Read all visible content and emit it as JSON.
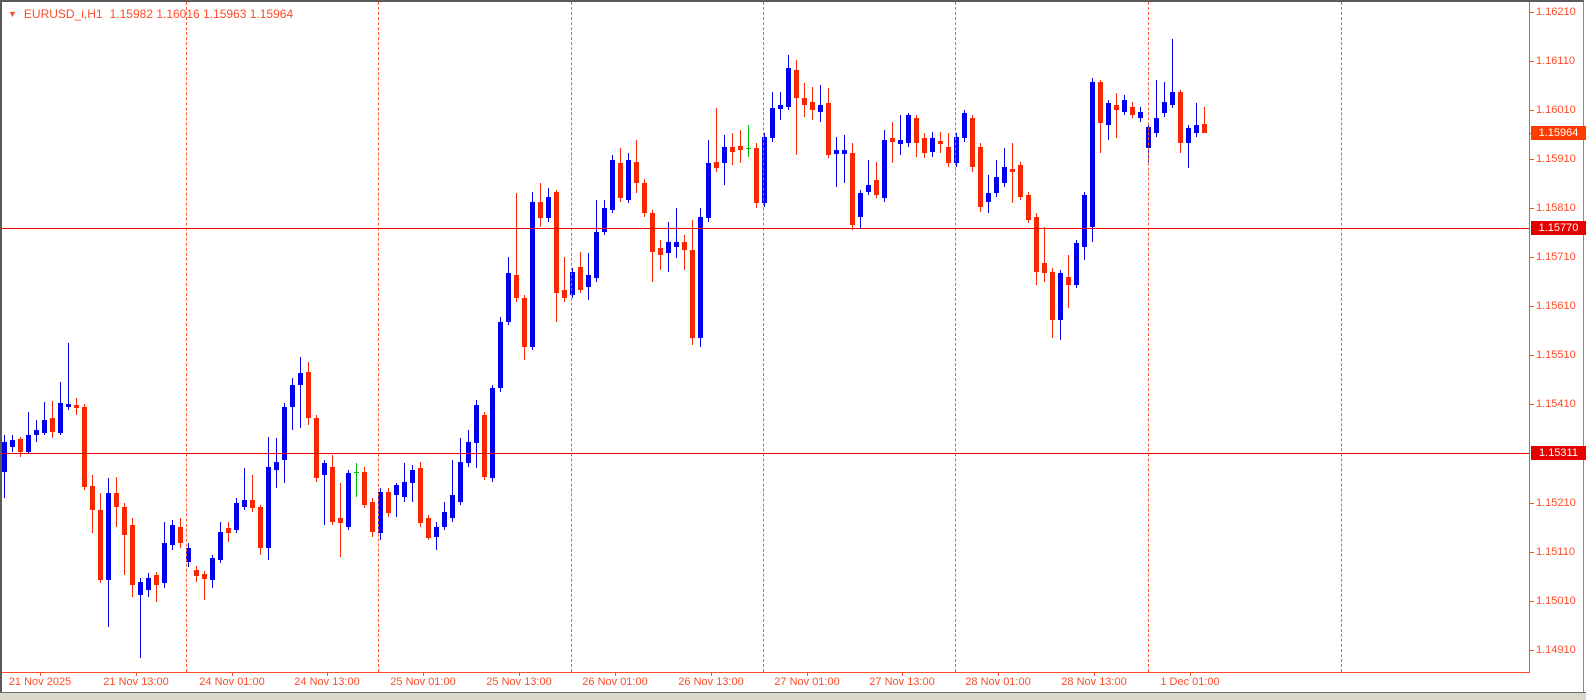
{
  "header": {
    "symbol": "EURUSD_i,H1",
    "ohlc": "1.15982 1.16016 1.15963 1.15964"
  },
  "colors": {
    "background": "#ffffff",
    "text": "#ff4b28",
    "axis_border": "#ff4b28",
    "separator": "#ff5c33",
    "bull_candle": "#0000ee",
    "bear_candle": "#f52800",
    "doji_candle": "#00be00",
    "hline": "#ee0000",
    "hline_box_bg": "#e60000",
    "price_marker_bg": "#ff3c00",
    "chrome_strip": "#dcd8cc"
  },
  "chart_data": {
    "type": "candlestick",
    "title": "EURUSD_i,H1",
    "symbol": "EURUSD_i",
    "timeframe": "H1",
    "ylim": [
      1.14865,
      1.1623
    ],
    "grid": "vertical-day-separators-only",
    "legend_position": "none",
    "y_axis_labels": [
      "1.16210",
      "1.16110",
      "1.16010",
      "1.15910",
      "1.15810",
      "1.15710",
      "1.15610",
      "1.15510",
      "1.15410",
      "1.15210",
      "1.15110",
      "1.15010",
      "1.14910"
    ],
    "x_axis_labels": [
      {
        "x": 40,
        "label": "21 Nov 2025"
      },
      {
        "x": 136,
        "label": "21 Nov 13:00"
      },
      {
        "x": 232,
        "label": "24 Nov 01:00"
      },
      {
        "x": 327,
        "label": "24 Nov 13:00"
      },
      {
        "x": 423,
        "label": "25 Nov 01:00"
      },
      {
        "x": 519,
        "label": "25 Nov 13:00"
      },
      {
        "x": 615,
        "label": "26 Nov 01:00"
      },
      {
        "x": 711,
        "label": "26 Nov 13:00"
      },
      {
        "x": 807,
        "label": "27 Nov 01:00"
      },
      {
        "x": 902,
        "label": "27 Nov 13:00"
      },
      {
        "x": 998,
        "label": "28 Nov 01:00"
      },
      {
        "x": 1094,
        "label": "28 Nov 13:00"
      },
      {
        "x": 1190,
        "label": "1 Dec 01:00"
      }
    ],
    "day_separators_x": [
      186,
      378,
      571,
      763,
      955,
      1148,
      1341
    ],
    "hlines": [
      {
        "price": 1.1577,
        "label": "1.15770"
      },
      {
        "price": 1.15311,
        "label": "1.15311"
      }
    ],
    "price_marker": {
      "price": 1.15964,
      "label": "1.15964"
    },
    "x_start": 4.5,
    "x_step": 8,
    "candles": [
      [
        1.15273,
        1.15348,
        1.1522,
        1.15334,
        "u"
      ],
      [
        1.15323,
        1.15348,
        1.15313,
        1.15338,
        "u"
      ],
      [
        1.1534,
        1.15344,
        1.15303,
        1.15313,
        "d"
      ],
      [
        1.15313,
        1.15395,
        1.15311,
        1.15348,
        "u"
      ],
      [
        1.15348,
        1.15379,
        1.15334,
        1.15358,
        "u"
      ],
      [
        1.15352,
        1.15415,
        1.15348,
        1.15379,
        "u"
      ],
      [
        1.15383,
        1.15417,
        1.15342,
        1.15354,
        "d"
      ],
      [
        1.15352,
        1.15456,
        1.15348,
        1.15413,
        "u"
      ],
      [
        1.15405,
        1.15535,
        1.15399,
        1.15411,
        "u"
      ],
      [
        1.15409,
        1.15423,
        1.15389,
        1.15403,
        "d"
      ],
      [
        1.15405,
        1.15411,
        1.15236,
        1.15242,
        "d"
      ],
      [
        1.15244,
        1.15266,
        1.15148,
        1.15195,
        "d"
      ],
      [
        1.15195,
        1.1523,
        1.15046,
        1.15053,
        "d"
      ],
      [
        1.15053,
        1.1526,
        1.14957,
        1.1523,
        "u"
      ],
      [
        1.1523,
        1.15262,
        1.15161,
        1.15201,
        "d"
      ],
      [
        1.15201,
        1.15209,
        1.15063,
        1.15144,
        "d"
      ],
      [
        1.15165,
        1.15179,
        1.15018,
        1.15042,
        "d"
      ],
      [
        1.15022,
        1.15057,
        1.14894,
        1.15048,
        "u"
      ],
      [
        1.15032,
        1.15067,
        1.15018,
        1.15057,
        "u"
      ],
      [
        1.15063,
        1.15069,
        1.15008,
        1.15042,
        "d"
      ],
      [
        1.15046,
        1.15171,
        1.15036,
        1.15128,
        "u"
      ],
      [
        1.15124,
        1.15175,
        1.15114,
        1.15165,
        "u"
      ],
      [
        1.15161,
        1.15179,
        1.15118,
        1.15128,
        "d"
      ],
      [
        1.15089,
        1.15128,
        1.15079,
        1.15118,
        "u"
      ],
      [
        1.15073,
        1.15081,
        1.15048,
        1.15061,
        "d"
      ],
      [
        1.15065,
        1.15071,
        1.15012,
        1.15054,
        "d"
      ],
      [
        1.15053,
        1.15103,
        1.15036,
        1.15097,
        "u"
      ],
      [
        1.15093,
        1.15171,
        1.15087,
        1.1515,
        "u"
      ],
      [
        1.15159,
        1.15171,
        1.1513,
        1.15148,
        "d"
      ],
      [
        1.15154,
        1.1522,
        1.15148,
        1.15209,
        "u"
      ],
      [
        1.15201,
        1.15281,
        1.15195,
        1.15216,
        "u"
      ],
      [
        1.15216,
        1.15266,
        1.15191,
        1.15199,
        "d"
      ],
      [
        1.15201,
        1.15205,
        1.15103,
        1.15118,
        "d"
      ],
      [
        1.15118,
        1.15344,
        1.15093,
        1.15283,
        "u"
      ],
      [
        1.15277,
        1.15342,
        1.1524,
        1.15293,
        "u"
      ],
      [
        1.15297,
        1.15413,
        1.1525,
        1.15405,
        "u"
      ],
      [
        1.15405,
        1.15464,
        1.15358,
        1.1545,
        "u"
      ],
      [
        1.1545,
        1.15507,
        1.15362,
        1.15474,
        "u"
      ],
      [
        1.15476,
        1.15497,
        1.15368,
        1.15383,
        "d"
      ],
      [
        1.15383,
        1.15389,
        1.15252,
        1.1526,
        "d"
      ],
      [
        1.15266,
        1.15297,
        1.15165,
        1.15291,
        "u"
      ],
      [
        1.15283,
        1.15307,
        1.15165,
        1.15171,
        "d"
      ],
      [
        1.15179,
        1.1525,
        1.15099,
        1.15169,
        "d"
      ],
      [
        1.15161,
        1.15277,
        1.15154,
        1.15271,
        "u"
      ],
      [
        1.15273,
        1.15291,
        1.15222,
        1.15273,
        "g"
      ],
      [
        1.15273,
        1.15283,
        1.15199,
        1.15205,
        "d"
      ],
      [
        1.15211,
        1.1522,
        1.1514,
        1.1515,
        "d"
      ],
      [
        1.15148,
        1.1524,
        1.15134,
        1.15232,
        "u"
      ],
      [
        1.15232,
        1.1524,
        1.15181,
        1.15189,
        "d"
      ],
      [
        1.15226,
        1.1525,
        1.15181,
        1.15246,
        "u"
      ],
      [
        1.15222,
        1.15291,
        1.15211,
        1.15252,
        "u"
      ],
      [
        1.1525,
        1.15287,
        1.15211,
        1.15277,
        "u"
      ],
      [
        1.15281,
        1.15293,
        1.15161,
        1.15169,
        "d"
      ],
      [
        1.15179,
        1.15185,
        1.15134,
        1.15138,
        "d"
      ],
      [
        1.1514,
        1.15171,
        1.15114,
        1.15161,
        "u"
      ],
      [
        1.15161,
        1.15211,
        1.15154,
        1.15191,
        "u"
      ],
      [
        1.15179,
        1.15297,
        1.15171,
        1.15226,
        "u"
      ],
      [
        1.15211,
        1.15342,
        1.15205,
        1.15293,
        "u"
      ],
      [
        1.15291,
        1.15358,
        1.15283,
        1.15334,
        "u"
      ],
      [
        1.15332,
        1.15419,
        1.15281,
        1.15409,
        "u"
      ],
      [
        1.15389,
        1.15395,
        1.15256,
        1.15262,
        "d"
      ],
      [
        1.1526,
        1.1545,
        1.15252,
        1.15444,
        "u"
      ],
      [
        1.15444,
        1.15588,
        1.15436,
        1.15578,
        "u"
      ],
      [
        1.15578,
        1.15711,
        1.15572,
        1.15678,
        "u"
      ],
      [
        1.15674,
        1.15841,
        1.15619,
        1.15627,
        "d"
      ],
      [
        1.15627,
        1.15633,
        1.15501,
        1.15527,
        "d"
      ],
      [
        1.15527,
        1.15843,
        1.15521,
        1.15823,
        "u"
      ],
      [
        1.15823,
        1.15861,
        1.15772,
        1.1579,
        "d"
      ],
      [
        1.1579,
        1.15851,
        1.15782,
        1.15833,
        "u"
      ],
      [
        1.15843,
        1.15847,
        1.15578,
        1.15637,
        "d"
      ],
      [
        1.15643,
        1.15711,
        1.15619,
        1.15627,
        "d"
      ],
      [
        1.15633,
        1.15688,
        1.15627,
        1.1568,
        "u"
      ],
      [
        1.1569,
        1.15721,
        1.15637,
        1.15643,
        "d"
      ],
      [
        1.15649,
        1.15719,
        1.15623,
        1.15674,
        "u"
      ],
      [
        1.15668,
        1.15827,
        1.1566,
        1.15761,
        "u"
      ],
      [
        1.15761,
        1.15827,
        1.15755,
        1.1581,
        "u"
      ],
      [
        1.15806,
        1.15918,
        1.158,
        1.15908,
        "u"
      ],
      [
        1.15902,
        1.15933,
        1.15823,
        1.15831,
        "d"
      ],
      [
        1.15827,
        1.15922,
        1.15821,
        1.15908,
        "u"
      ],
      [
        1.15904,
        1.15949,
        1.15841,
        1.15861,
        "d"
      ],
      [
        1.15861,
        1.1587,
        1.15792,
        1.158,
        "d"
      ],
      [
        1.158,
        1.15806,
        1.1566,
        1.15721,
        "d"
      ],
      [
        1.15729,
        1.15745,
        1.15684,
        1.15715,
        "d"
      ],
      [
        1.15719,
        1.15782,
        1.1568,
        1.15741,
        "u"
      ],
      [
        1.15731,
        1.1581,
        1.15709,
        1.15741,
        "u"
      ],
      [
        1.15741,
        1.15755,
        1.15684,
        1.15725,
        "d"
      ],
      [
        1.15725,
        1.15786,
        1.15531,
        1.15546,
        "d"
      ],
      [
        1.15546,
        1.1581,
        1.15527,
        1.15792,
        "u"
      ],
      [
        1.1579,
        1.15949,
        1.15782,
        1.15902,
        "u"
      ],
      [
        1.15904,
        1.16014,
        1.15884,
        1.15892,
        "d"
      ],
      [
        1.15902,
        1.15959,
        1.15857,
        1.15935,
        "u"
      ],
      [
        1.15935,
        1.15963,
        1.15898,
        1.15924,
        "d"
      ],
      [
        1.15937,
        1.15969,
        1.15902,
        1.15928,
        "d"
      ],
      [
        1.15933,
        1.15979,
        1.15914,
        1.15933,
        "g"
      ],
      [
        1.15933,
        1.15943,
        1.1581,
        1.15821,
        "d"
      ],
      [
        1.15821,
        1.15963,
        1.15812,
        1.15955,
        "u"
      ],
      [
        1.15953,
        1.16047,
        1.15945,
        1.16014,
        "u"
      ],
      [
        1.16012,
        1.16047,
        1.1599,
        1.1602,
        "u"
      ],
      [
        1.16016,
        1.16122,
        1.1601,
        1.16096,
        "u"
      ],
      [
        1.16091,
        1.16112,
        1.15918,
        1.16034,
        "d"
      ],
      [
        1.16034,
        1.16065,
        1.15996,
        1.1602,
        "d"
      ],
      [
        1.16026,
        1.16057,
        1.1599,
        1.1601,
        "d"
      ],
      [
        1.16006,
        1.16061,
        1.15986,
        1.1602,
        "u"
      ],
      [
        1.16024,
        1.16055,
        1.15912,
        1.15918,
        "d"
      ],
      [
        1.1592,
        1.15955,
        1.15853,
        1.15928,
        "u"
      ],
      [
        1.1592,
        1.15959,
        1.15861,
        1.15928,
        "u"
      ],
      [
        1.15922,
        1.15943,
        1.15766,
        1.15776,
        "d"
      ],
      [
        1.15792,
        1.15847,
        1.1577,
        1.15841,
        "u"
      ],
      [
        1.15843,
        1.15908,
        1.15837,
        1.15857,
        "u"
      ],
      [
        1.15867,
        1.15904,
        1.15831,
        1.15837,
        "d"
      ],
      [
        1.15831,
        1.15969,
        1.15823,
        1.15949,
        "u"
      ],
      [
        1.15953,
        1.15986,
        1.15902,
        1.15945,
        "d"
      ],
      [
        1.15941,
        1.16,
        1.15918,
        1.15949,
        "u"
      ],
      [
        1.15943,
        1.16004,
        1.15935,
        1.16,
        "u"
      ],
      [
        1.15994,
        1.16,
        1.15914,
        1.15943,
        "d"
      ],
      [
        1.15953,
        1.15963,
        1.15912,
        1.15922,
        "d"
      ],
      [
        1.15924,
        1.15965,
        1.15914,
        1.15953,
        "u"
      ],
      [
        1.15947,
        1.15965,
        1.15922,
        1.15941,
        "d"
      ],
      [
        1.15935,
        1.15963,
        1.15894,
        1.15902,
        "d"
      ],
      [
        1.15902,
        1.15963,
        1.15894,
        1.15955,
        "u"
      ],
      [
        1.15953,
        1.1601,
        1.15945,
        1.16004,
        "u"
      ],
      [
        1.15994,
        1.16,
        1.15884,
        1.15894,
        "d"
      ],
      [
        1.15935,
        1.15943,
        1.15802,
        1.15812,
        "d"
      ],
      [
        1.15823,
        1.15878,
        1.158,
        1.15841,
        "u"
      ],
      [
        1.15841,
        1.15908,
        1.15833,
        1.15874,
        "u"
      ],
      [
        1.15861,
        1.15933,
        1.15853,
        1.15894,
        "u"
      ],
      [
        1.1589,
        1.15943,
        1.15821,
        1.15884,
        "d"
      ],
      [
        1.15898,
        1.15904,
        1.15827,
        1.15833,
        "d"
      ],
      [
        1.15837,
        1.15843,
        1.1578,
        1.15786,
        "d"
      ],
      [
        1.15792,
        1.158,
        1.15654,
        1.1568,
        "d"
      ],
      [
        1.15698,
        1.15772,
        1.1566,
        1.15678,
        "d"
      ],
      [
        1.1568,
        1.15688,
        1.15546,
        1.15582,
        "d"
      ],
      [
        1.15582,
        1.15684,
        1.15541,
        1.15678,
        "u"
      ],
      [
        1.1567,
        1.15715,
        1.15607,
        1.15654,
        "d"
      ],
      [
        1.15654,
        1.15745,
        1.15647,
        1.15739,
        "u"
      ],
      [
        1.15731,
        1.15843,
        1.15704,
        1.15837,
        "u"
      ],
      [
        1.15772,
        1.16075,
        1.15741,
        1.16067,
        "u"
      ],
      [
        1.16067,
        1.16071,
        1.15922,
        1.15984,
        "d"
      ],
      [
        1.15979,
        1.1603,
        1.15949,
        1.16024,
        "u"
      ],
      [
        1.1602,
        1.16045,
        1.15953,
        1.1601,
        "d"
      ],
      [
        1.16006,
        1.1604,
        1.16,
        1.1603,
        "u"
      ],
      [
        1.16016,
        1.16026,
        1.15994,
        1.16,
        "d"
      ],
      [
        1.15994,
        1.16016,
        1.15986,
        1.16006,
        "u"
      ],
      [
        1.15933,
        1.15984,
        1.15904,
        1.15975,
        "u"
      ],
      [
        1.15963,
        1.16071,
        1.15955,
        1.15994,
        "u"
      ],
      [
        1.16004,
        1.16067,
        1.15996,
        1.16026,
        "u"
      ],
      [
        1.1602,
        1.16155,
        1.16014,
        1.16047,
        "u"
      ],
      [
        1.16047,
        1.16051,
        1.15922,
        1.15943,
        "d"
      ],
      [
        1.15943,
        1.15979,
        1.15892,
        1.15973,
        "u"
      ],
      [
        1.15963,
        1.16024,
        1.15955,
        1.15979,
        "u"
      ],
      [
        1.15982,
        1.16016,
        1.15963,
        1.15964,
        "d"
      ]
    ]
  }
}
